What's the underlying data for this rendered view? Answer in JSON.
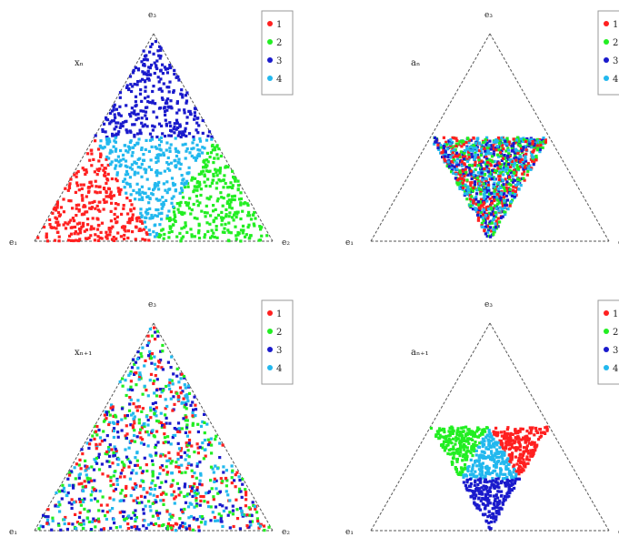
{
  "chart_data": [
    {
      "type": "scatter",
      "panel_label": "xₙ",
      "vertex_labels": [
        "e₁",
        "e₂",
        "e₃"
      ],
      "legend": [
        "1",
        "2",
        "3",
        "4"
      ],
      "legend_placement": "top-right",
      "series_colors": [
        "#ff2020",
        "#22ee22",
        "#1a1acc",
        "#22b8ee"
      ],
      "regions": [
        {
          "series": "1",
          "polygon": [
            [
              0,
              0
            ],
            [
              0.5,
              0
            ],
            [
              0.25,
              0.433
            ]
          ]
        },
        {
          "series": "2",
          "polygon": [
            [
              0.5,
              0
            ],
            [
              1,
              0
            ],
            [
              0.75,
              0.433
            ]
          ]
        },
        {
          "series": "3",
          "polygon": [
            [
              0.25,
              0.433
            ],
            [
              0.75,
              0.433
            ],
            [
              0.5,
              0.866
            ]
          ]
        },
        {
          "series": "4",
          "polygon": [
            [
              0.5,
              0
            ],
            [
              0.75,
              0.433
            ],
            [
              0.25,
              0.433
            ]
          ]
        }
      ],
      "points_per_series": 300
    },
    {
      "type": "scatter",
      "panel_label": "aₙ",
      "vertex_labels": [
        "e₁",
        "e₂",
        "e₃"
      ],
      "legend": [
        "1",
        "2",
        "3",
        "4"
      ],
      "legend_placement": "top-right",
      "series_colors": [
        "#ff2020",
        "#22ee22",
        "#1a1acc",
        "#22b8ee"
      ],
      "regions": [
        {
          "series": "mixed",
          "polygon": [
            [
              0.25,
              0.433
            ],
            [
              0.75,
              0.433
            ],
            [
              0.5,
              0
            ]
          ]
        }
      ],
      "points_per_series": 300
    },
    {
      "type": "scatter",
      "panel_label": "xₙ₊₁",
      "vertex_labels": [
        "e₁",
        "e₂",
        "e₃"
      ],
      "legend": [
        "1",
        "2",
        "3",
        "4"
      ],
      "legend_placement": "top-right",
      "series_colors": [
        "#ff2020",
        "#22ee22",
        "#1a1acc",
        "#22b8ee"
      ],
      "regions": [
        {
          "series": "mixed",
          "polygon": [
            [
              0,
              0
            ],
            [
              1,
              0
            ],
            [
              0.5,
              0.866
            ]
          ]
        }
      ],
      "points_per_series": 250
    },
    {
      "type": "scatter",
      "panel_label": "aₙ₊₁",
      "vertex_labels": [
        "e₁",
        "e₂",
        "e₃"
      ],
      "legend": [
        "1",
        "2",
        "3",
        "4"
      ],
      "legend_placement": "top-right",
      "series_colors": [
        "#ff2020",
        "#22ee22",
        "#1a1acc",
        "#22b8ee"
      ],
      "regions": [
        {
          "series": "2",
          "polygon": [
            [
              0.25,
              0.433
            ],
            [
              0.5,
              0.433
            ],
            [
              0.375,
              0.2165
            ]
          ]
        },
        {
          "series": "1",
          "polygon": [
            [
              0.5,
              0.433
            ],
            [
              0.75,
              0.433
            ],
            [
              0.625,
              0.2165
            ]
          ]
        },
        {
          "series": "4",
          "polygon": [
            [
              0.375,
              0.2165
            ],
            [
              0.625,
              0.2165
            ],
            [
              0.5,
              0.433
            ]
          ]
        },
        {
          "series": "3",
          "polygon": [
            [
              0.375,
              0.2165
            ],
            [
              0.625,
              0.2165
            ],
            [
              0.5,
              0
            ]
          ]
        }
      ],
      "points_per_series": 220
    }
  ]
}
